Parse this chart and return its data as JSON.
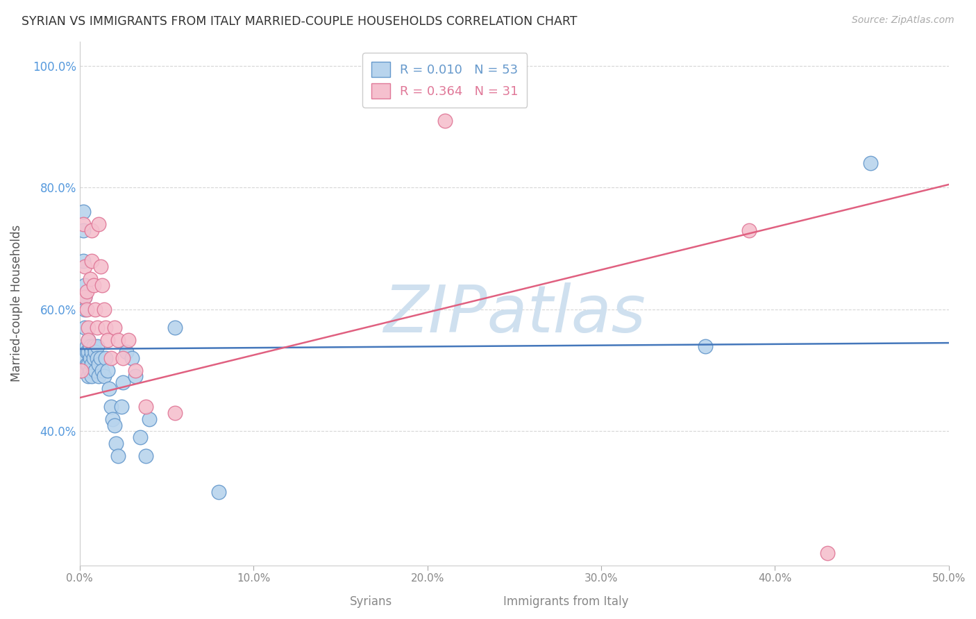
{
  "title": "SYRIAN VS IMMIGRANTS FROM ITALY MARRIED-COUPLE HOUSEHOLDS CORRELATION CHART",
  "source": "Source: ZipAtlas.com",
  "ylabel": "Married-couple Households",
  "xaxis_label_syrians": "Syrians",
  "xaxis_label_italy": "Immigrants from Italy",
  "xlim": [
    0.0,
    0.5
  ],
  "ylim": [
    0.18,
    1.04
  ],
  "yticks": [
    0.4,
    0.6,
    0.8,
    1.0
  ],
  "ytick_labels": [
    "40.0%",
    "60.0%",
    "80.0%",
    "100.0%"
  ],
  "xticks": [
    0.0,
    0.1,
    0.2,
    0.3,
    0.4,
    0.5
  ],
  "xtick_labels": [
    "0.0%",
    "10.0%",
    "20.0%",
    "30.0%",
    "40.0%",
    "50.0%"
  ],
  "background_color": "#ffffff",
  "grid_color": "#cccccc",
  "syrian_color": "#b8d4ed",
  "syrian_edge_color": "#6699cc",
  "italy_color": "#f5c0ce",
  "italy_edge_color": "#e07898",
  "syrian_line_color": "#4477bb",
  "italy_line_color": "#e06080",
  "syrian_R": 0.01,
  "syrian_N": 53,
  "italy_R": 0.364,
  "italy_N": 31,
  "watermark": "ZIPatlas",
  "watermark_color": "#cfe0ef",
  "syrian_scatter_x": [
    0.001,
    0.001,
    0.002,
    0.002,
    0.002,
    0.003,
    0.003,
    0.003,
    0.003,
    0.004,
    0.004,
    0.004,
    0.005,
    0.005,
    0.005,
    0.005,
    0.006,
    0.006,
    0.006,
    0.007,
    0.007,
    0.007,
    0.008,
    0.008,
    0.009,
    0.009,
    0.01,
    0.01,
    0.011,
    0.011,
    0.012,
    0.013,
    0.014,
    0.015,
    0.016,
    0.017,
    0.018,
    0.019,
    0.02,
    0.021,
    0.022,
    0.024,
    0.025,
    0.027,
    0.03,
    0.032,
    0.035,
    0.038,
    0.04,
    0.055,
    0.08,
    0.36,
    0.455
  ],
  "syrian_scatter_y": [
    0.52,
    0.5,
    0.76,
    0.73,
    0.68,
    0.64,
    0.62,
    0.6,
    0.57,
    0.54,
    0.53,
    0.51,
    0.55,
    0.53,
    0.51,
    0.49,
    0.54,
    0.52,
    0.5,
    0.53,
    0.51,
    0.49,
    0.54,
    0.52,
    0.53,
    0.5,
    0.54,
    0.52,
    0.51,
    0.49,
    0.52,
    0.5,
    0.49,
    0.52,
    0.5,
    0.47,
    0.44,
    0.42,
    0.41,
    0.38,
    0.36,
    0.44,
    0.48,
    0.53,
    0.52,
    0.49,
    0.39,
    0.36,
    0.42,
    0.57,
    0.3,
    0.54,
    0.84
  ],
  "italy_scatter_x": [
    0.001,
    0.002,
    0.003,
    0.003,
    0.004,
    0.004,
    0.005,
    0.005,
    0.006,
    0.007,
    0.007,
    0.008,
    0.009,
    0.01,
    0.011,
    0.012,
    0.013,
    0.014,
    0.015,
    0.016,
    0.018,
    0.02,
    0.022,
    0.025,
    0.028,
    0.032,
    0.038,
    0.055,
    0.21,
    0.385,
    0.43
  ],
  "italy_scatter_y": [
    0.5,
    0.74,
    0.67,
    0.62,
    0.63,
    0.6,
    0.57,
    0.55,
    0.65,
    0.73,
    0.68,
    0.64,
    0.6,
    0.57,
    0.74,
    0.67,
    0.64,
    0.6,
    0.57,
    0.55,
    0.52,
    0.57,
    0.55,
    0.52,
    0.55,
    0.5,
    0.44,
    0.43,
    0.91,
    0.73,
    0.2
  ],
  "syrian_line_y0": 0.535,
  "syrian_line_y1": 0.545,
  "italy_line_y0": 0.455,
  "italy_line_y1": 0.805
}
